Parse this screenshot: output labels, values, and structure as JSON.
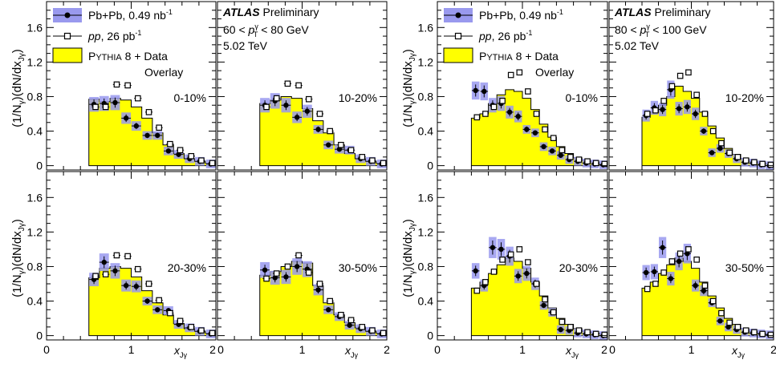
{
  "header": {
    "atlas": "ATLAS",
    "preliminary": "Preliminary",
    "energy": "5.02 TeV",
    "pt_left_lo": "60 <",
    "pt_left_hi": "< 80 GeV",
    "pt_right_lo": "80 <",
    "pt_right_hi": "< 100 GeV",
    "pt_symbol": "p",
    "pt_sub": "T",
    "pt_sup": "γ"
  },
  "legend": {
    "pbpb_label": "Pb+Pb, 0.49 nb",
    "pbpb_sup": "-1",
    "pp_label": "pp",
    "pp_rest": ", 26 pb",
    "pp_sup": "-1",
    "pythia_p": "P",
    "pythia_caps": "YTHIA",
    "pythia_rest": " 8 + Data",
    "overlay": "Overlay"
  },
  "axes": {
    "ylabel": "(1/N_γ)(dN/dx_Jγ)",
    "xlabel_main": "x",
    "xlabel_sub": "Jγ",
    "yticks": [
      "0",
      "0.4",
      "0.8",
      "1.2",
      "1.6"
    ],
    "xticks": [
      "0",
      "1",
      "2"
    ]
  },
  "colors": {
    "pythia": "#ffff00",
    "pbpb_band": "#9999ee",
    "pbpb_marker": "#000000",
    "pp_marker": "#000000"
  },
  "chart_data": [
    {
      "type": "histogram",
      "centrality": "0-10%",
      "pt_bin": "60-80 GeV",
      "xlim": [
        0,
        2
      ],
      "ylim": [
        -0.05,
        1.9
      ],
      "bin_edges": [
        0.5,
        0.625,
        0.75,
        0.875,
        1.0,
        1.125,
        1.25,
        1.375,
        1.5,
        1.625,
        1.75,
        1.875,
        2.0
      ],
      "pythia": [
        0.77,
        0.74,
        0.78,
        0.76,
        0.68,
        0.55,
        0.38,
        0.24,
        0.14,
        0.08,
        0.05,
        0.03
      ],
      "pbpb_x": [
        0.56,
        0.68,
        0.81,
        0.94,
        1.06,
        1.19,
        1.31,
        1.44,
        1.56,
        1.69,
        1.81,
        1.94
      ],
      "pbpb": [
        0.71,
        0.72,
        0.73,
        0.55,
        0.46,
        0.35,
        0.35,
        0.17,
        0.13,
        0.08,
        0.05,
        0.02
      ],
      "pp_x": [
        0.56,
        0.68,
        0.81,
        0.94,
        1.06,
        1.19,
        1.31,
        1.44,
        1.56,
        1.69,
        1.81,
        1.94
      ],
      "pp": [
        0.68,
        0.68,
        0.94,
        0.93,
        0.78,
        0.62,
        0.44,
        0.25,
        0.18,
        0.11,
        0.06,
        0.03
      ]
    },
    {
      "type": "histogram",
      "centrality": "10-20%",
      "pt_bin": "60-80 GeV",
      "xlim": [
        0,
        2
      ],
      "ylim": [
        -0.05,
        1.9
      ],
      "bin_edges": [
        0.5,
        0.625,
        0.75,
        0.875,
        1.0,
        1.125,
        1.25,
        1.375,
        1.5,
        1.625,
        1.75,
        1.875,
        2.0
      ],
      "pythia": [
        0.72,
        0.76,
        0.8,
        0.78,
        0.66,
        0.52,
        0.38,
        0.24,
        0.14,
        0.08,
        0.05,
        0.03
      ],
      "pbpb_x": [
        0.56,
        0.68,
        0.81,
        0.94,
        1.06,
        1.19,
        1.31,
        1.44,
        1.56,
        1.69,
        1.81,
        1.94
      ],
      "pbpb": [
        0.7,
        0.75,
        0.7,
        0.56,
        0.63,
        0.42,
        0.24,
        0.19,
        0.18,
        0.08,
        0.05,
        0.02
      ],
      "pp_x": [
        0.56,
        0.68,
        0.81,
        0.94,
        1.06,
        1.19,
        1.31,
        1.44,
        1.56,
        1.69,
        1.81,
        1.94
      ],
      "pp": [
        0.68,
        0.78,
        0.95,
        0.93,
        0.77,
        0.6,
        0.4,
        0.24,
        0.18,
        0.1,
        0.06,
        0.03
      ]
    },
    {
      "type": "histogram",
      "centrality": "0-10%",
      "pt_bin": "80-100 GeV",
      "xlim": [
        0,
        2
      ],
      "ylim": [
        -0.05,
        1.9
      ],
      "bin_edges": [
        0.4,
        0.5,
        0.6,
        0.7,
        0.8,
        0.9,
        1.0,
        1.1,
        1.2,
        1.3,
        1.4,
        1.5,
        1.6,
        1.7,
        1.8,
        1.9,
        2.0
      ],
      "pythia": [
        0.55,
        0.6,
        0.72,
        0.82,
        0.88,
        0.86,
        0.78,
        0.65,
        0.48,
        0.33,
        0.22,
        0.14,
        0.09,
        0.06,
        0.04,
        0.02
      ],
      "pbpb_x": [
        0.45,
        0.55,
        0.65,
        0.75,
        0.85,
        0.95,
        1.05,
        1.15,
        1.25,
        1.35,
        1.45,
        1.55,
        1.65,
        1.75,
        1.85,
        1.95
      ],
      "pbpb": [
        0.87,
        0.86,
        0.7,
        0.72,
        0.62,
        0.57,
        0.42,
        0.38,
        0.22,
        0.17,
        0.12,
        0.07,
        0.05,
        0.03,
        0.02,
        0.01
      ],
      "pp_x": [
        0.45,
        0.55,
        0.65,
        0.75,
        0.85,
        0.95,
        1.05,
        1.15,
        1.25,
        1.35,
        1.45,
        1.55,
        1.65,
        1.75,
        1.85,
        1.95
      ],
      "pp": [
        0.56,
        0.6,
        0.68,
        0.75,
        1.05,
        1.08,
        0.86,
        0.6,
        0.42,
        0.32,
        0.18,
        0.1,
        0.07,
        0.05,
        0.03,
        0.02
      ]
    },
    {
      "type": "histogram",
      "centrality": "10-20%",
      "pt_bin": "80-100 GeV",
      "xlim": [
        0,
        2
      ],
      "ylim": [
        -0.05,
        1.9
      ],
      "bin_edges": [
        0.4,
        0.5,
        0.6,
        0.7,
        0.8,
        0.9,
        1.0,
        1.1,
        1.2,
        1.3,
        1.4,
        1.5,
        1.6,
        1.7,
        1.8,
        1.9,
        2.0
      ],
      "pythia": [
        0.56,
        0.62,
        0.7,
        0.8,
        0.92,
        0.86,
        0.78,
        0.62,
        0.46,
        0.32,
        0.2,
        0.13,
        0.08,
        0.05,
        0.03,
        0.02
      ],
      "pbpb_x": [
        0.45,
        0.55,
        0.65,
        0.75,
        0.85,
        0.95,
        1.05,
        1.15,
        1.25,
        1.35,
        1.45,
        1.55,
        1.65,
        1.75,
        1.85,
        1.95
      ],
      "pbpb": [
        0.58,
        0.67,
        0.65,
        0.88,
        0.66,
        0.68,
        0.6,
        0.4,
        0.15,
        0.2,
        0.14,
        0.08,
        0.04,
        0.03,
        0.01,
        0.0
      ],
      "pp_x": [
        0.45,
        0.55,
        0.65,
        0.75,
        0.85,
        0.95,
        1.05,
        1.15,
        1.25,
        1.35,
        1.45,
        1.55,
        1.65,
        1.75,
        1.85,
        1.95
      ],
      "pp": [
        0.6,
        0.64,
        0.75,
        0.92,
        1.04,
        1.08,
        0.82,
        0.6,
        0.4,
        0.26,
        0.15,
        0.1,
        0.06,
        0.04,
        0.02,
        0.01
      ]
    },
    {
      "type": "histogram",
      "centrality": "20-30%",
      "pt_bin": "60-80 GeV",
      "xlim": [
        0,
        2
      ],
      "ylim": [
        -0.05,
        1.9
      ],
      "bin_edges": [
        0.5,
        0.625,
        0.75,
        0.875,
        1.0,
        1.125,
        1.25,
        1.375,
        1.5,
        1.625,
        1.75,
        1.875,
        2.0
      ],
      "pythia": [
        0.67,
        0.78,
        0.8,
        0.78,
        0.68,
        0.52,
        0.38,
        0.24,
        0.14,
        0.08,
        0.05,
        0.03
      ],
      "pbpb_x": [
        0.56,
        0.68,
        0.81,
        0.94,
        1.06,
        1.19,
        1.31,
        1.44,
        1.56,
        1.69,
        1.81,
        1.94
      ],
      "pbpb": [
        0.65,
        0.85,
        0.75,
        0.58,
        0.57,
        0.4,
        0.3,
        0.29,
        0.13,
        0.09,
        0.05,
        0.02
      ],
      "pp_x": [
        0.56,
        0.68,
        0.81,
        0.94,
        1.06,
        1.19,
        1.31,
        1.44,
        1.56,
        1.69,
        1.81,
        1.94
      ],
      "pp": [
        0.69,
        0.71,
        0.93,
        0.92,
        0.77,
        0.6,
        0.41,
        0.26,
        0.17,
        0.1,
        0.06,
        0.03
      ]
    },
    {
      "type": "histogram",
      "centrality": "30-50%",
      "pt_bin": "60-80 GeV",
      "xlim": [
        0,
        2
      ],
      "ylim": [
        -0.05,
        1.9
      ],
      "bin_edges": [
        0.5,
        0.625,
        0.75,
        0.875,
        1.0,
        1.125,
        1.25,
        1.375,
        1.5,
        1.625,
        1.75,
        1.875,
        2.0
      ],
      "pythia": [
        0.7,
        0.74,
        0.8,
        0.86,
        0.84,
        0.58,
        0.38,
        0.24,
        0.15,
        0.09,
        0.05,
        0.03
      ],
      "pbpb_x": [
        0.56,
        0.68,
        0.81,
        0.94,
        1.06,
        1.19,
        1.31,
        1.44,
        1.56,
        1.69,
        1.81,
        1.94
      ],
      "pbpb": [
        0.76,
        0.67,
        0.68,
        0.8,
        0.77,
        0.53,
        0.3,
        0.22,
        0.12,
        0.08,
        0.05,
        0.02
      ],
      "pp_x": [
        0.56,
        0.68,
        0.81,
        0.94,
        1.06,
        1.19,
        1.31,
        1.44,
        1.56,
        1.69,
        1.81,
        1.94
      ],
      "pp": [
        0.66,
        0.72,
        0.8,
        0.93,
        0.73,
        0.6,
        0.4,
        0.24,
        0.18,
        0.1,
        0.06,
        0.03
      ]
    },
    {
      "type": "histogram",
      "centrality": "20-30%",
      "pt_bin": "80-100 GeV",
      "xlim": [
        0,
        2
      ],
      "ylim": [
        -0.05,
        1.9
      ],
      "bin_edges": [
        0.4,
        0.5,
        0.6,
        0.7,
        0.8,
        0.9,
        1.0,
        1.1,
        1.2,
        1.3,
        1.4,
        1.5,
        1.6,
        1.7,
        1.8,
        1.9,
        2.0
      ],
      "pythia": [
        0.55,
        0.62,
        0.72,
        0.82,
        0.9,
        0.86,
        0.78,
        0.62,
        0.46,
        0.32,
        0.2,
        0.13,
        0.08,
        0.05,
        0.03,
        0.02
      ],
      "pbpb_x": [
        0.45,
        0.55,
        0.65,
        0.75,
        0.85,
        0.95,
        1.05,
        1.15,
        1.25,
        1.35,
        1.45,
        1.55,
        1.65,
        1.75,
        1.85,
        1.95
      ],
      "pbpb": [
        0.75,
        0.58,
        1.02,
        1.0,
        0.92,
        0.69,
        0.72,
        0.6,
        0.35,
        0.27,
        0.07,
        0.06,
        0.03,
        0.02,
        0.01,
        0.0
      ],
      "pp_x": [
        0.45,
        0.55,
        0.65,
        0.75,
        0.85,
        0.95,
        1.05,
        1.15,
        1.25,
        1.35,
        1.45,
        1.55,
        1.65,
        1.75,
        1.85,
        1.95
      ],
      "pp": [
        0.52,
        0.62,
        0.74,
        0.88,
        0.94,
        1.0,
        0.85,
        0.6,
        0.42,
        0.27,
        0.16,
        0.1,
        0.06,
        0.04,
        0.02,
        0.01
      ]
    },
    {
      "type": "histogram",
      "centrality": "30-50%",
      "pt_bin": "80-100 GeV",
      "xlim": [
        0,
        2
      ],
      "ylim": [
        -0.05,
        1.9
      ],
      "bin_edges": [
        0.4,
        0.5,
        0.6,
        0.7,
        0.8,
        0.9,
        1.0,
        1.1,
        1.2,
        1.3,
        1.4,
        1.5,
        1.6,
        1.7,
        1.8,
        1.9,
        2.0
      ],
      "pythia": [
        0.55,
        0.62,
        0.72,
        0.82,
        0.9,
        0.86,
        0.78,
        0.62,
        0.46,
        0.32,
        0.2,
        0.13,
        0.08,
        0.05,
        0.03,
        0.02
      ],
      "pbpb_x": [
        0.45,
        0.55,
        0.65,
        0.75,
        0.85,
        0.95,
        1.05,
        1.15,
        1.25,
        1.35,
        1.45,
        1.55,
        1.65,
        1.75,
        1.85,
        1.95
      ],
      "pbpb": [
        0.73,
        0.74,
        1.02,
        0.66,
        0.86,
        0.95,
        0.58,
        0.52,
        0.38,
        0.17,
        0.1,
        0.07,
        0.04,
        0.03,
        0.02,
        0.01
      ],
      "pp_x": [
        0.45,
        0.55,
        0.65,
        0.75,
        0.85,
        0.95,
        1.05,
        1.15,
        1.25,
        1.35,
        1.45,
        1.55,
        1.65,
        1.75,
        1.85,
        1.95
      ],
      "pp": [
        0.54,
        0.6,
        0.73,
        0.86,
        0.95,
        1.0,
        0.88,
        0.58,
        0.4,
        0.26,
        0.15,
        0.1,
        0.06,
        0.04,
        0.02,
        0.01
      ]
    }
  ]
}
